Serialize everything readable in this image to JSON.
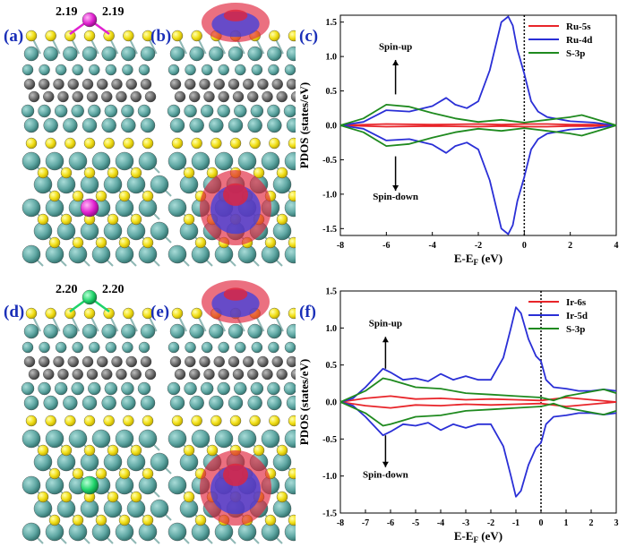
{
  "panel_labels": {
    "a": "(a)",
    "b": "(b)",
    "c": "(c)",
    "d": "(d)",
    "e": "(e)",
    "f": "(f)"
  },
  "bond_labels": {
    "a_left": "2.19",
    "a_right": "2.19",
    "d_left": "2.20",
    "d_right": "2.20"
  },
  "colors": {
    "ru5s": "#e8252a",
    "ru4d": "#2a2fd6",
    "s3p": "#1f8a1f",
    "label": "#1a2fb8",
    "metal_ru": "#e021d0",
    "metal_ir": "#1fd36a",
    "sulfur": "#f2e01a",
    "mo": "#5fa7a3",
    "carbon": "#6b6b6b",
    "iso_pos": "#e0243c",
    "iso_neg": "#3b3fe0"
  },
  "chart_data": [
    {
      "id": "c",
      "type": "line",
      "xlabel": "E-E",
      "xlabel_sub": "F",
      "xlabel_unit": " (eV)",
      "ylabel": "PDOS (states/eV)",
      "xlim": [
        -8,
        4
      ],
      "ylim": [
        -1.6,
        1.6
      ],
      "xticks": [
        -8,
        -6,
        -4,
        -2,
        0,
        2,
        4
      ],
      "xtick_labels": [
        "-8",
        "-6",
        "-4",
        "-2",
        "0",
        "2",
        "4"
      ],
      "yticks": [
        -1.5,
        -1.0,
        -0.5,
        0.0,
        0.5,
        1.0,
        1.5
      ],
      "ytick_labels": [
        "-1.5",
        "-1.0",
        "-0.5",
        "0.0",
        "0.5",
        "1.0",
        "1.5"
      ],
      "fermi": 0,
      "spin_up": "Spin-up",
      "spin_down": "Spin-down",
      "legend": [
        "Ru-5s",
        "Ru-4d",
        "S-3p"
      ],
      "series": [
        {
          "name": "Ru-5s",
          "color": "#e8252a",
          "x": [
            -8,
            -6,
            -4,
            -2,
            -1,
            0,
            1,
            2,
            3,
            4
          ],
          "up": [
            0,
            0.02,
            0.01,
            0.02,
            0.01,
            0.02,
            0.02,
            0.01,
            0.01,
            0
          ],
          "down": [
            0,
            -0.02,
            -0.01,
            -0.02,
            -0.01,
            -0.02,
            -0.02,
            -0.01,
            -0.01,
            0
          ]
        },
        {
          "name": "Ru-4d",
          "color": "#2a2fd6",
          "x": [
            -8,
            -7,
            -6,
            -5,
            -4,
            -3.4,
            -3,
            -2.5,
            -2,
            -1.5,
            -1,
            -0.7,
            -0.5,
            -0.3,
            0,
            0.3,
            0.6,
            1,
            2,
            3,
            4
          ],
          "up": [
            0,
            0.05,
            0.22,
            0.2,
            0.28,
            0.4,
            0.3,
            0.25,
            0.35,
            0.8,
            1.5,
            1.58,
            1.45,
            1.1,
            0.75,
            0.35,
            0.2,
            0.12,
            0.06,
            0.04,
            0
          ],
          "down": [
            0,
            -0.05,
            -0.22,
            -0.2,
            -0.28,
            -0.4,
            -0.3,
            -0.25,
            -0.35,
            -0.8,
            -1.5,
            -1.58,
            -1.45,
            -1.1,
            -0.75,
            -0.35,
            -0.2,
            -0.12,
            -0.06,
            -0.04,
            0
          ]
        },
        {
          "name": "S-3p",
          "color": "#1f8a1f",
          "x": [
            -8,
            -7,
            -6,
            -5,
            -4,
            -3,
            -2,
            -1,
            0,
            1,
            2,
            2.5,
            3,
            4
          ],
          "up": [
            0,
            0.1,
            0.3,
            0.27,
            0.18,
            0.1,
            0.05,
            0.08,
            0.04,
            0.08,
            0.12,
            0.15,
            0.1,
            0
          ],
          "down": [
            0,
            -0.1,
            -0.3,
            -0.27,
            -0.18,
            -0.1,
            -0.05,
            -0.08,
            -0.04,
            -0.08,
            -0.12,
            -0.15,
            -0.1,
            0
          ]
        }
      ]
    },
    {
      "id": "f",
      "type": "line",
      "xlabel": "E-E",
      "xlabel_sub": "F",
      "xlabel_unit": " (eV)",
      "ylabel": "PDOS (states/eV)",
      "xlim": [
        -8,
        3
      ],
      "ylim": [
        -1.5,
        1.5
      ],
      "xticks": [
        -8,
        -7,
        -6,
        -5,
        -4,
        -3,
        -2,
        -1,
        0,
        1,
        2,
        3
      ],
      "xtick_labels": [
        "-8",
        "-7",
        "-6",
        "-5",
        "-4",
        "-3",
        "-2",
        "-1",
        "0",
        "1",
        "2",
        "3"
      ],
      "yticks": [
        -1.5,
        -1.0,
        -0.5,
        0.0,
        0.5,
        1.0,
        1.5
      ],
      "ytick_labels": [
        "-1.5",
        "-1.0",
        "-0.5",
        "0.0",
        "0.5",
        "1.0",
        "1.5"
      ],
      "fermi": 0,
      "spin_up": "Spin-up",
      "spin_down": "Spin-down",
      "legend": [
        "Ir-6s",
        "Ir-5d",
        "S-3p"
      ],
      "series": [
        {
          "name": "Ir-6s",
          "color": "#e8252a",
          "x": [
            -8,
            -7,
            -6,
            -5,
            -4,
            -3,
            -2,
            -1,
            0,
            1,
            2,
            3
          ],
          "up": [
            0,
            0.05,
            0.08,
            0.04,
            0.05,
            0.03,
            0.04,
            0.03,
            0.02,
            0.06,
            0.03,
            0
          ],
          "down": [
            0,
            -0.05,
            -0.08,
            -0.04,
            -0.05,
            -0.03,
            -0.04,
            -0.03,
            -0.02,
            -0.06,
            -0.03,
            0
          ]
        },
        {
          "name": "Ir-5d",
          "color": "#2a2fd6",
          "x": [
            -8,
            -7.5,
            -7,
            -6.3,
            -6,
            -5.5,
            -5,
            -4.5,
            -4,
            -3.5,
            -3,
            -2.5,
            -2,
            -1.5,
            -1.2,
            -1,
            -0.8,
            -0.5,
            -0.2,
            0,
            0.2,
            0.5,
            1,
            1.5,
            2,
            2.5,
            3
          ],
          "up": [
            0,
            0.05,
            0.2,
            0.45,
            0.4,
            0.3,
            0.32,
            0.28,
            0.38,
            0.3,
            0.35,
            0.3,
            0.3,
            0.6,
            1.0,
            1.28,
            1.2,
            0.85,
            0.62,
            0.55,
            0.3,
            0.2,
            0.18,
            0.15,
            0.15,
            0.17,
            0.15
          ],
          "down": [
            0,
            -0.05,
            -0.2,
            -0.45,
            -0.4,
            -0.3,
            -0.32,
            -0.28,
            -0.38,
            -0.3,
            -0.35,
            -0.3,
            -0.3,
            -0.6,
            -1.0,
            -1.28,
            -1.2,
            -0.85,
            -0.62,
            -0.55,
            -0.3,
            -0.2,
            -0.18,
            -0.15,
            -0.15,
            -0.17,
            -0.15
          ]
        },
        {
          "name": "S-3p",
          "color": "#1f8a1f",
          "x": [
            -8,
            -7,
            -6.3,
            -6,
            -5,
            -4,
            -3,
            -2,
            -1,
            0,
            0.5,
            1,
            2,
            2.5,
            3
          ],
          "up": [
            0,
            0.15,
            0.32,
            0.3,
            0.2,
            0.18,
            0.12,
            0.1,
            0.08,
            0.06,
            0.02,
            0.08,
            0.14,
            0.17,
            0.12
          ],
          "down": [
            0,
            -0.15,
            -0.32,
            -0.3,
            -0.2,
            -0.18,
            -0.12,
            -0.1,
            -0.08,
            -0.06,
            -0.02,
            -0.08,
            -0.14,
            -0.17,
            -0.12
          ]
        }
      ]
    }
  ]
}
